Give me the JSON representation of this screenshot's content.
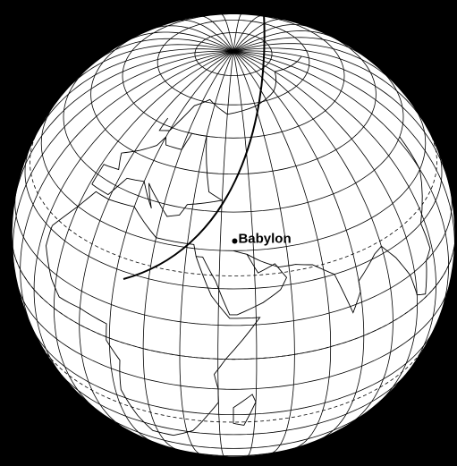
{
  "labels": {
    "city": "Babylon"
  }
}
